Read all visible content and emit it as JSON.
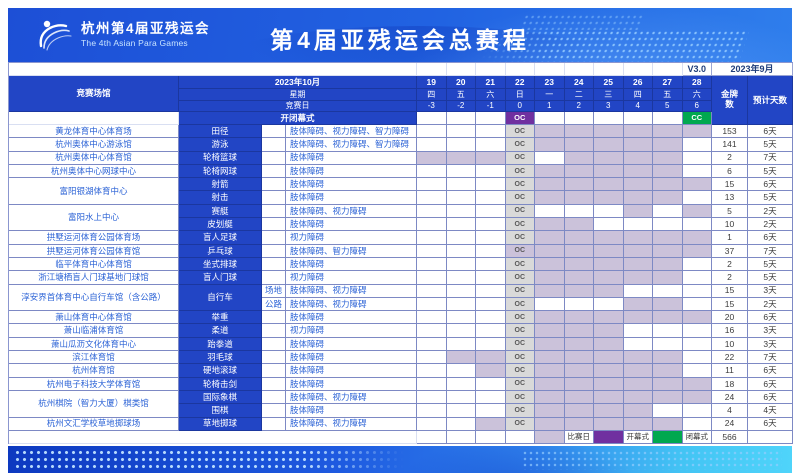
{
  "header": {
    "logo_title": "杭州第4届亚残运会",
    "logo_subtitle": "The 4th Asian Para Games",
    "title": "第4届亚残运会总赛程"
  },
  "table": {
    "version": "V3.0",
    "issued": "2023年9月",
    "venue_header": "竞赛场馆",
    "month_header": "2023年10月",
    "week_header": "星期",
    "compday_header": "竞赛日",
    "ceremony_header": "开闭幕式",
    "gold_header": "金牌数",
    "days_header": "预计天数",
    "dates": [
      "19",
      "20",
      "21",
      "22",
      "23",
      "24",
      "25",
      "26",
      "27",
      "28"
    ],
    "weekdays": [
      "四",
      "五",
      "六",
      "日",
      "一",
      "二",
      "三",
      "四",
      "五",
      "六"
    ],
    "comp_days": [
      "-3",
      "-2",
      "-1",
      "0",
      "1",
      "2",
      "3",
      "4",
      "5",
      "6"
    ],
    "oc_label": "OC",
    "cc_label": "CC",
    "rows": [
      {
        "venue": "黄龙体育中心体育场",
        "vs": 1,
        "sport": "田径",
        "ss": 1,
        "sub": "",
        "cls": "肢体障碍、视力障碍、智力障碍",
        "days": [
          23,
          24,
          25,
          26,
          27,
          28
        ],
        "ocFill": false,
        "gold": "153",
        "est": "6天"
      },
      {
        "venue": "杭州奥体中心游泳馆",
        "vs": 1,
        "sport": "游泳",
        "ss": 1,
        "sub": "",
        "cls": "肢体障碍、视力障碍、智力障碍",
        "days": [
          23,
          24,
          25,
          26,
          27
        ],
        "ocFill": false,
        "gold": "141",
        "est": "5天"
      },
      {
        "venue": "杭州奥体中心体育馆",
        "vs": 1,
        "sport": "轮椅篮球",
        "ss": 1,
        "sub": "",
        "cls": "肢体障碍",
        "days": [
          19,
          20,
          21,
          24,
          25,
          26,
          27
        ],
        "ocFill": false,
        "gold": "2",
        "est": "7天"
      },
      {
        "venue": "杭州奥体中心网球中心",
        "vs": 1,
        "sport": "轮椅网球",
        "ss": 1,
        "sub": "",
        "cls": "肢体障碍",
        "days": [
          23,
          24,
          25,
          26,
          27
        ],
        "ocFill": false,
        "gold": "6",
        "est": "5天"
      },
      {
        "venue": "富阳银湖体育中心",
        "vs": 2,
        "sport": "射箭",
        "ss": 1,
        "sub": "",
        "cls": "肢体障碍",
        "days": [
          23,
          24,
          25,
          26,
          27,
          28
        ],
        "ocFill": false,
        "gold": "15",
        "est": "6天"
      },
      {
        "venue": "",
        "vs": 0,
        "sport": "射击",
        "ss": 1,
        "sub": "",
        "cls": "肢体障碍",
        "days": [
          23,
          24,
          25,
          26,
          27
        ],
        "ocFill": false,
        "gold": "13",
        "est": "5天"
      },
      {
        "venue": "富阳水上中心",
        "vs": 2,
        "sport": "赛艇",
        "ss": 1,
        "sub": "",
        "cls": "肢体障碍、视力障碍",
        "days": [
          26,
          28
        ],
        "ocFill": false,
        "gold": "5",
        "est": "2天"
      },
      {
        "venue": "",
        "vs": 0,
        "sport": "皮划艇",
        "ss": 1,
        "sub": "",
        "cls": "肢体障碍",
        "days": [
          23,
          24
        ],
        "ocFill": false,
        "gold": "10",
        "est": "2天"
      },
      {
        "venue": "拱墅运河体育公园体育场",
        "vs": 1,
        "sport": "盲人足球",
        "ss": 1,
        "sub": "",
        "cls": "视力障碍",
        "days": [
          23,
          24,
          25,
          26,
          27,
          28
        ],
        "ocFill": false,
        "gold": "1",
        "est": "6天"
      },
      {
        "venue": "拱墅运河体育公园体育馆",
        "vs": 1,
        "sport": "乒乓球",
        "ss": 1,
        "sub": "",
        "cls": "肢体障碍、智力障碍",
        "days": [
          23,
          24,
          25,
          26,
          27,
          28
        ],
        "ocFill": true,
        "gold": "37",
        "est": "7天"
      },
      {
        "venue": "临平体育中心体育馆",
        "vs": 1,
        "sport": "坐式排球",
        "ss": 1,
        "sub": "",
        "cls": "肢体障碍",
        "days": [
          23,
          24,
          25,
          26,
          27
        ],
        "ocFill": false,
        "gold": "2",
        "est": "5天"
      },
      {
        "venue": "浙江塘栖盲人门球基地门球馆",
        "vs": 1,
        "sport": "盲人门球",
        "ss": 1,
        "sub": "",
        "cls": "视力障碍",
        "days": [
          23,
          24,
          25,
          26,
          27
        ],
        "ocFill": false,
        "gold": "2",
        "est": "5天"
      },
      {
        "venue": "淳安界首体育中心自行车馆（含公路）",
        "vs": 2,
        "sport": "自行车",
        "ss": 2,
        "sub": "场地",
        "cls": "肢体障碍、视力障碍",
        "days": [
          23,
          24,
          25
        ],
        "ocFill": false,
        "gold": "15",
        "est": "3天"
      },
      {
        "venue": "",
        "vs": 0,
        "sport": "",
        "ss": 0,
        "sub": "公路",
        "cls": "肢体障碍、视力障碍",
        "days": [
          26,
          27
        ],
        "ocFill": false,
        "gold": "15",
        "est": "2天"
      },
      {
        "venue": "萧山体育中心体育馆",
        "vs": 1,
        "sport": "举重",
        "ss": 1,
        "sub": "",
        "cls": "肢体障碍",
        "days": [
          23,
          24,
          25,
          26,
          27,
          28
        ],
        "ocFill": false,
        "gold": "20",
        "est": "6天"
      },
      {
        "venue": "萧山临浦体育馆",
        "vs": 1,
        "sport": "柔道",
        "ss": 1,
        "sub": "",
        "cls": "视力障碍",
        "days": [
          23,
          24,
          25
        ],
        "ocFill": false,
        "gold": "16",
        "est": "3天"
      },
      {
        "venue": "萧山瓜沥文化体育中心",
        "vs": 1,
        "sport": "跆拳道",
        "ss": 1,
        "sub": "",
        "cls": "肢体障碍",
        "days": [
          23,
          24,
          25
        ],
        "ocFill": false,
        "gold": "10",
        "est": "3天"
      },
      {
        "venue": "滨江体育馆",
        "vs": 1,
        "sport": "羽毛球",
        "ss": 1,
        "sub": "",
        "cls": "肢体障碍",
        "days": [
          20,
          21,
          23,
          24,
          25,
          26,
          27
        ],
        "ocFill": false,
        "gold": "22",
        "est": "7天"
      },
      {
        "venue": "杭州体育馆",
        "vs": 1,
        "sport": "硬地滚球",
        "ss": 1,
        "sub": "",
        "cls": "肢体障碍",
        "days": [
          21,
          23,
          24,
          25,
          26,
          27
        ],
        "ocFill": false,
        "gold": "11",
        "est": "6天"
      },
      {
        "venue": "杭州电子科技大学体育馆",
        "vs": 1,
        "sport": "轮椅击剑",
        "ss": 1,
        "sub": "",
        "cls": "肢体障碍",
        "days": [
          23,
          24,
          25,
          26,
          27,
          28
        ],
        "ocFill": false,
        "gold": "18",
        "est": "6天"
      },
      {
        "venue": "杭州棋院（智力大厦）棋类馆",
        "vs": 2,
        "sport": "国际象棋",
        "ss": 1,
        "sub": "",
        "cls": "肢体障碍、视力障碍",
        "days": [
          23,
          24,
          25,
          26,
          27,
          28
        ],
        "ocFill": false,
        "gold": "24",
        "est": "6天"
      },
      {
        "venue": "",
        "vs": 0,
        "sport": "围棋",
        "ss": 1,
        "sub": "",
        "cls": "肢体障碍",
        "days": [
          23,
          24,
          25,
          26
        ],
        "ocFill": false,
        "gold": "4",
        "est": "4天"
      },
      {
        "venue": "杭州文汇学校草地掷球场",
        "vs": 1,
        "sport": "草地掷球",
        "ss": 1,
        "sub": "",
        "cls": "肢体障碍、视力障碍",
        "days": [
          21,
          23,
          24,
          25,
          26,
          27
        ],
        "ocFill": false,
        "gold": "24",
        "est": "6天"
      }
    ],
    "legend": {
      "comp_label": "比赛日",
      "open_label": "开幕式",
      "close_label": "闭幕式",
      "total": "566"
    }
  },
  "colors": {
    "header_blue": "#2245c5",
    "banner_blue_dark": "#1d4fd6",
    "banner_blue_mid": "#2163e2",
    "banner_blue_light": "#2f7eec",
    "competition_fill": "#cbc2da",
    "oc_cell_grey": "#d9d9d9",
    "opening_purple": "#7030a0",
    "closing_green": "#00a84f",
    "text_blue": "#2c63d6"
  }
}
